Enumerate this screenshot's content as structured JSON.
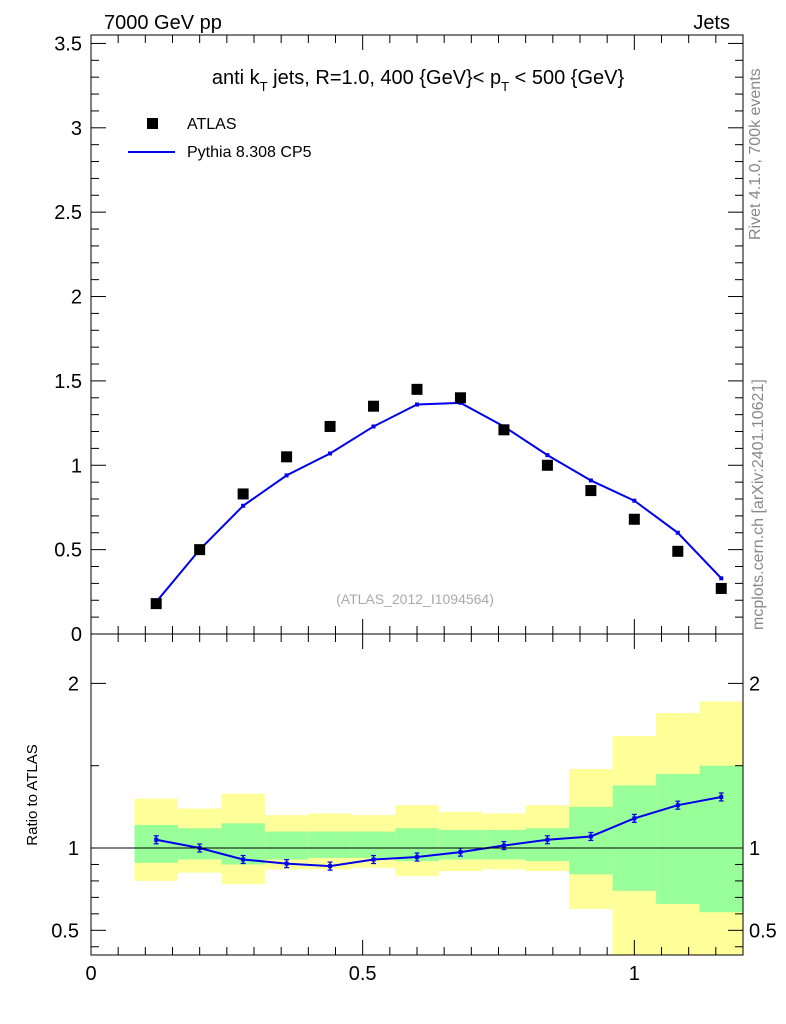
{
  "header": {
    "left": "7000 GeV pp",
    "right": "Jets"
  },
  "side_labels": {
    "rivet": "Rivet 4.1.0,  700k events",
    "source": "mcplots.cern.ch [arXiv:2401.10621]"
  },
  "watermark": "(ATLAS_2012_I1094564)",
  "colors": {
    "data": "#000000",
    "mc": "#0000ee",
    "band_inner": "#99ff99",
    "band_outer": "#ffff99"
  },
  "chart_data": [
    {
      "type": "scatter",
      "title": "anti k_T jets, R=1.0,  400 {GeV}< p_T < 500 {GeV}",
      "title_parts": {
        "pre": "anti k",
        "sub1": "T",
        "mid": " jets, R=1.0,  400 {GeV}< p",
        "sub2": "T",
        "post": " < 500 {GeV}"
      },
      "xlim": [
        0,
        1.2
      ],
      "ylim": [
        0,
        3.55
      ],
      "xlabel": "",
      "ylabel": "",
      "yticks": [
        {
          "value": 0,
          "label": "0"
        },
        {
          "value": 0.5,
          "label": "0.5"
        },
        {
          "value": 1,
          "label": "1"
        },
        {
          "value": 1.5,
          "label": "1.5"
        },
        {
          "value": 2,
          "label": "2"
        },
        {
          "value": 2.5,
          "label": "2.5"
        },
        {
          "value": 3,
          "label": "3"
        },
        {
          "value": 3.5,
          "label": "3.5"
        }
      ],
      "legend": [
        {
          "name": "ATLAS",
          "style": "marker"
        },
        {
          "name": "Pythia 8.308 CP5",
          "style": "line"
        }
      ],
      "legend_position": "top-left",
      "series": [
        {
          "name": "ATLAS",
          "x": [
            0.12,
            0.2,
            0.28,
            0.36,
            0.44,
            0.52,
            0.6,
            0.68,
            0.76,
            0.84,
            0.92,
            1.0,
            1.08,
            1.16
          ],
          "y": [
            0.18,
            0.5,
            0.83,
            1.05,
            1.23,
            1.35,
            1.45,
            1.4,
            1.21,
            1.0,
            0.85,
            0.68,
            0.49,
            0.27
          ]
        },
        {
          "name": "Pythia 8.308 CP5",
          "x": [
            0.12,
            0.2,
            0.28,
            0.36,
            0.44,
            0.52,
            0.6,
            0.68,
            0.76,
            0.84,
            0.92,
            1.0,
            1.08,
            1.16
          ],
          "y": [
            0.19,
            0.5,
            0.76,
            0.94,
            1.07,
            1.23,
            1.36,
            1.37,
            1.23,
            1.06,
            0.91,
            0.79,
            0.6,
            0.33
          ]
        }
      ]
    },
    {
      "type": "line",
      "title": "",
      "ylabel": "Ratio to ATLAS",
      "xlim": [
        0,
        1.2
      ],
      "ylim": [
        0.35,
        2.3
      ],
      "xticks": [
        {
          "value": 0,
          "label": "0"
        },
        {
          "value": 0.5,
          "label": "0.5"
        },
        {
          "value": 1,
          "label": "1"
        }
      ],
      "yticks": [
        {
          "value": 0.5,
          "label": "0.5"
        },
        {
          "value": 1,
          "label": "1"
        },
        {
          "value": 2,
          "label": "2"
        }
      ],
      "reference_line": 1,
      "bins": [
        {
          "x0": 0.08,
          "x1": 0.16,
          "in_lo": 0.91,
          "in_hi": 1.14,
          "out_lo": 0.8,
          "out_hi": 1.3
        },
        {
          "x0": 0.16,
          "x1": 0.24,
          "in_lo": 0.93,
          "in_hi": 1.12,
          "out_lo": 0.85,
          "out_hi": 1.24
        },
        {
          "x0": 0.24,
          "x1": 0.32,
          "in_lo": 0.9,
          "in_hi": 1.15,
          "out_lo": 0.78,
          "out_hi": 1.33
        },
        {
          "x0": 0.32,
          "x1": 0.4,
          "in_lo": 0.93,
          "in_hi": 1.1,
          "out_lo": 0.87,
          "out_hi": 1.2
        },
        {
          "x0": 0.4,
          "x1": 0.48,
          "in_lo": 0.94,
          "in_hi": 1.1,
          "out_lo": 0.87,
          "out_hi": 1.21
        },
        {
          "x0": 0.48,
          "x1": 0.56,
          "in_lo": 0.94,
          "in_hi": 1.1,
          "out_lo": 0.88,
          "out_hi": 1.2
        },
        {
          "x0": 0.56,
          "x1": 0.64,
          "in_lo": 0.92,
          "in_hi": 1.12,
          "out_lo": 0.83,
          "out_hi": 1.26
        },
        {
          "x0": 0.64,
          "x1": 0.72,
          "in_lo": 0.93,
          "in_hi": 1.11,
          "out_lo": 0.86,
          "out_hi": 1.22
        },
        {
          "x0": 0.72,
          "x1": 0.8,
          "in_lo": 0.93,
          "in_hi": 1.11,
          "out_lo": 0.87,
          "out_hi": 1.21
        },
        {
          "x0": 0.8,
          "x1": 0.88,
          "in_lo": 0.92,
          "in_hi": 1.12,
          "out_lo": 0.86,
          "out_hi": 1.26
        },
        {
          "x0": 0.88,
          "x1": 0.96,
          "in_lo": 0.84,
          "in_hi": 1.25,
          "out_lo": 0.63,
          "out_hi": 1.48
        },
        {
          "x0": 0.96,
          "x1": 1.04,
          "in_lo": 0.74,
          "in_hi": 1.38,
          "out_lo": 0.35,
          "out_hi": 1.68
        },
        {
          "x0": 1.04,
          "x1": 1.12,
          "in_lo": 0.66,
          "in_hi": 1.45,
          "out_lo": 0.35,
          "out_hi": 1.82
        },
        {
          "x0": 1.12,
          "x1": 1.2,
          "in_lo": 0.61,
          "in_hi": 1.5,
          "out_lo": 0.35,
          "out_hi": 1.89
        }
      ],
      "series": [
        {
          "name": "Pythia 8.308 CP5 / ATLAS",
          "x": [
            0.12,
            0.2,
            0.28,
            0.36,
            0.44,
            0.52,
            0.6,
            0.68,
            0.76,
            0.84,
            0.92,
            1.0,
            1.08,
            1.16
          ],
          "y": [
            1.05,
            1.0,
            0.93,
            0.905,
            0.89,
            0.93,
            0.945,
            0.975,
            1.015,
            1.05,
            1.07,
            1.18,
            1.26,
            1.31
          ]
        }
      ]
    }
  ]
}
